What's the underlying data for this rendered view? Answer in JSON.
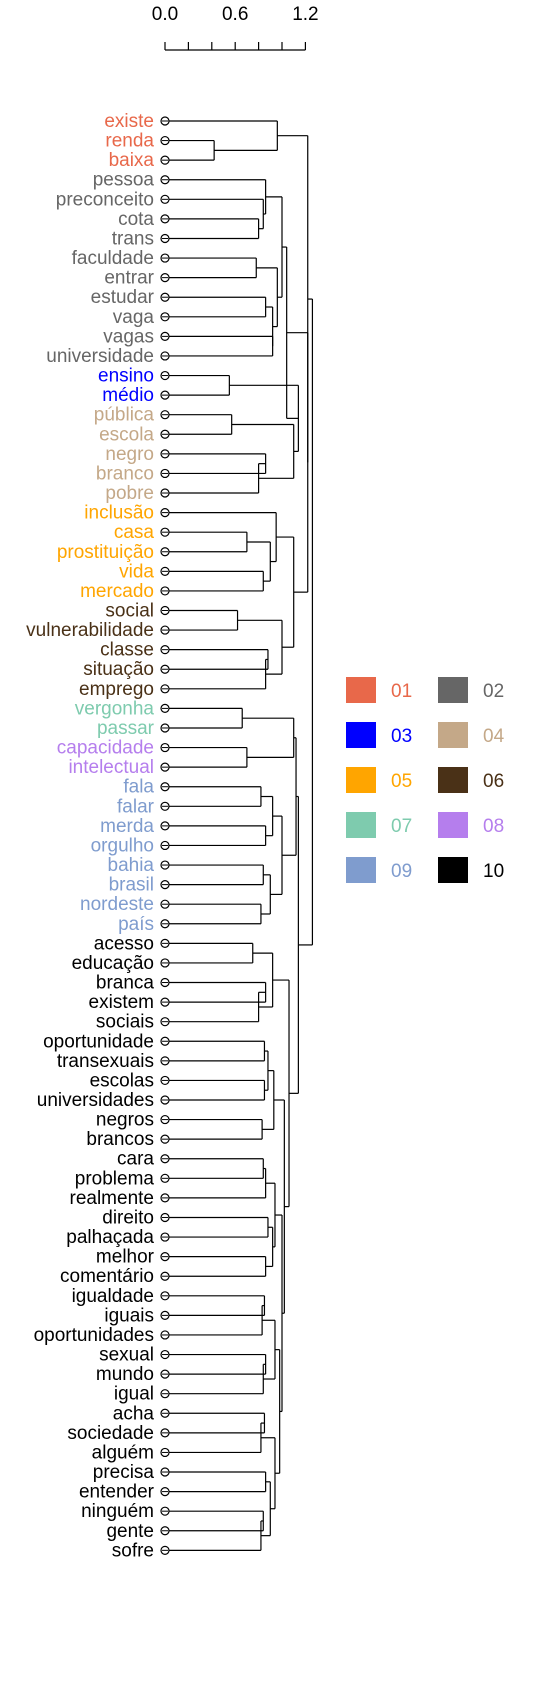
{
  "scale": {
    "ticks": [
      0,
      0.2,
      0.4,
      0.6,
      0.8,
      1.0,
      1.2
    ],
    "tick_labels": [
      {
        "value": 0.0,
        "label": "0.0"
      },
      {
        "value": 0.6,
        "label": "0.6"
      },
      {
        "value": 1.2,
        "label": "1.2"
      }
    ]
  },
  "clusters": [
    {
      "id": "01",
      "label": "01",
      "color": "#E8684A"
    },
    {
      "id": "02",
      "label": "02",
      "color": "#666666"
    },
    {
      "id": "03",
      "label": "03",
      "color": "#0000FF"
    },
    {
      "id": "04",
      "label": "04",
      "color": "#C4A888"
    },
    {
      "id": "05",
      "label": "05",
      "color": "#FFA500"
    },
    {
      "id": "06",
      "label": "06",
      "color": "#4A3117"
    },
    {
      "id": "07",
      "label": "07",
      "color": "#7ECBAE"
    },
    {
      "id": "08",
      "label": "08",
      "color": "#B57EED"
    },
    {
      "id": "09",
      "label": "09",
      "color": "#7F9CCE"
    },
    {
      "id": "10",
      "label": "10",
      "color": "#000000"
    }
  ],
  "leaves": [
    {
      "word": "existe",
      "cluster": "01"
    },
    {
      "word": "renda",
      "cluster": "01"
    },
    {
      "word": "baixa",
      "cluster": "01"
    },
    {
      "word": "pessoa",
      "cluster": "02"
    },
    {
      "word": "preconceito",
      "cluster": "02"
    },
    {
      "word": "cota",
      "cluster": "02"
    },
    {
      "word": "trans",
      "cluster": "02"
    },
    {
      "word": "faculdade",
      "cluster": "02"
    },
    {
      "word": "entrar",
      "cluster": "02"
    },
    {
      "word": "estudar",
      "cluster": "02"
    },
    {
      "word": "vaga",
      "cluster": "02"
    },
    {
      "word": "vagas",
      "cluster": "02"
    },
    {
      "word": "universidade",
      "cluster": "02"
    },
    {
      "word": "ensino",
      "cluster": "03"
    },
    {
      "word": "médio",
      "cluster": "03"
    },
    {
      "word": "pública",
      "cluster": "04"
    },
    {
      "word": "escola",
      "cluster": "04"
    },
    {
      "word": "negro",
      "cluster": "04"
    },
    {
      "word": "branco",
      "cluster": "04"
    },
    {
      "word": "pobre",
      "cluster": "04"
    },
    {
      "word": "inclusão",
      "cluster": "05"
    },
    {
      "word": "casa",
      "cluster": "05"
    },
    {
      "word": "prostituição",
      "cluster": "05"
    },
    {
      "word": "vida",
      "cluster": "05"
    },
    {
      "word": "mercado",
      "cluster": "05"
    },
    {
      "word": "social",
      "cluster": "06"
    },
    {
      "word": "vulnerabilidade",
      "cluster": "06"
    },
    {
      "word": "classe",
      "cluster": "06"
    },
    {
      "word": "situação",
      "cluster": "06"
    },
    {
      "word": "emprego",
      "cluster": "06"
    },
    {
      "word": "vergonha",
      "cluster": "07"
    },
    {
      "word": "passar",
      "cluster": "07"
    },
    {
      "word": "capacidade",
      "cluster": "08"
    },
    {
      "word": "intelectual",
      "cluster": "08"
    },
    {
      "word": "fala",
      "cluster": "09"
    },
    {
      "word": "falar",
      "cluster": "09"
    },
    {
      "word": "merda",
      "cluster": "09"
    },
    {
      "word": "orgulho",
      "cluster": "09"
    },
    {
      "word": "bahia",
      "cluster": "09"
    },
    {
      "word": "brasil",
      "cluster": "09"
    },
    {
      "word": "nordeste",
      "cluster": "09"
    },
    {
      "word": "país",
      "cluster": "09"
    },
    {
      "word": "acesso",
      "cluster": "10"
    },
    {
      "word": "educação",
      "cluster": "10"
    },
    {
      "word": "branca",
      "cluster": "10"
    },
    {
      "word": "existem",
      "cluster": "10"
    },
    {
      "word": "sociais",
      "cluster": "10"
    },
    {
      "word": "oportunidade",
      "cluster": "10"
    },
    {
      "word": "transexuais",
      "cluster": "10"
    },
    {
      "word": "escolas",
      "cluster": "10"
    },
    {
      "word": "universidades",
      "cluster": "10"
    },
    {
      "word": "negros",
      "cluster": "10"
    },
    {
      "word": "brancos",
      "cluster": "10"
    },
    {
      "word": "cara",
      "cluster": "10"
    },
    {
      "word": "problema",
      "cluster": "10"
    },
    {
      "word": "realmente",
      "cluster": "10"
    },
    {
      "word": "direito",
      "cluster": "10"
    },
    {
      "word": "palhaçada",
      "cluster": "10"
    },
    {
      "word": "melhor",
      "cluster": "10"
    },
    {
      "word": "comentário",
      "cluster": "10"
    },
    {
      "word": "igualdade",
      "cluster": "10"
    },
    {
      "word": "iguais",
      "cluster": "10"
    },
    {
      "word": "oportunidades",
      "cluster": "10"
    },
    {
      "word": "sexual",
      "cluster": "10"
    },
    {
      "word": "mundo",
      "cluster": "10"
    },
    {
      "word": "igual",
      "cluster": "10"
    },
    {
      "word": "acha",
      "cluster": "10"
    },
    {
      "word": "sociedade",
      "cluster": "10"
    },
    {
      "word": "alguém",
      "cluster": "10"
    },
    {
      "word": "precisa",
      "cluster": "10"
    },
    {
      "word": "entender",
      "cluster": "10"
    },
    {
      "word": "ninguém",
      "cluster": "10"
    },
    {
      "word": "gente",
      "cluster": "10"
    },
    {
      "word": "sofre",
      "cluster": "10"
    }
  ],
  "merges": [
    [
      1,
      2,
      0.42
    ],
    [
      0,
      "m0",
      0.96
    ],
    [
      5,
      6,
      0.8
    ],
    [
      4,
      "m2",
      0.84
    ],
    [
      3,
      "m3",
      0.86
    ],
    [
      7,
      8,
      0.78
    ],
    [
      9,
      10,
      0.86
    ],
    [
      11,
      12,
      0.92
    ],
    [
      "m6",
      "m7",
      0.92
    ],
    [
      "m5",
      "m8",
      0.96
    ],
    [
      "m4",
      "m9",
      1.0
    ],
    [
      13,
      14,
      0.55
    ],
    [
      15,
      16,
      0.57
    ],
    [
      17,
      18,
      0.86
    ],
    [
      "m13",
      19,
      0.8
    ],
    [
      "m12",
      "m14",
      1.1
    ],
    [
      "m11",
      "m15",
      1.14
    ],
    [
      "m10",
      "m16",
      1.04
    ],
    [
      21,
      22,
      0.7
    ],
    [
      23,
      24,
      0.84
    ],
    [
      "m18",
      "m19",
      0.9
    ],
    [
      20,
      "m20",
      0.95
    ],
    [
      25,
      26,
      0.62
    ],
    [
      27,
      28,
      0.88
    ],
    [
      29,
      "m23",
      0.86
    ],
    [
      "m22",
      "m24",
      1.0
    ],
    [
      "m21",
      "m25",
      1.1
    ],
    [
      "m17",
      "m26",
      1.22
    ],
    [
      "m0b",
      "m27",
      1.22
    ],
    [
      30,
      31,
      0.66
    ],
    [
      32,
      33,
      0.7
    ],
    [
      "m29",
      "m30",
      1.1
    ],
    [
      34,
      35,
      0.82
    ],
    [
      36,
      37,
      0.86
    ],
    [
      "m32",
      "m33",
      0.92
    ],
    [
      38,
      39,
      0.84
    ],
    [
      40,
      41,
      0.82
    ],
    [
      "m35",
      "m36",
      0.9
    ],
    [
      "m34",
      "m37",
      1.0
    ],
    [
      "m31",
      "m38",
      1.12
    ],
    [
      42,
      43,
      0.75
    ],
    [
      44,
      45,
      0.86
    ],
    [
      46,
      "m41",
      0.8
    ],
    [
      "m40",
      "m42",
      0.92
    ],
    [
      47,
      48,
      0.85
    ],
    [
      49,
      50,
      0.85
    ],
    [
      "m44",
      "m45",
      0.88
    ],
    [
      51,
      52,
      0.83
    ],
    [
      "m46",
      "m47",
      0.93
    ],
    [
      53,
      54,
      0.84
    ],
    [
      55,
      "m49",
      0.86
    ],
    [
      56,
      57,
      0.88
    ],
    [
      58,
      59,
      0.86
    ],
    [
      "m51",
      "m52",
      0.92
    ],
    [
      "m50",
      "m53",
      0.94
    ],
    [
      60,
      61,
      0.85
    ],
    [
      62,
      "m55",
      0.83
    ],
    [
      63,
      64,
      0.86
    ],
    [
      65,
      "m57",
      0.84
    ],
    [
      "m56",
      "m58",
      0.94
    ],
    [
      66,
      67,
      0.85
    ],
    [
      68,
      "m60",
      0.82
    ],
    [
      69,
      70,
      0.86
    ],
    [
      71,
      72,
      0.84
    ],
    [
      73,
      "m63",
      0.82
    ],
    [
      "m62",
      "m64",
      0.9
    ],
    [
      "m61",
      "m65",
      0.94
    ],
    [
      "m59",
      "m66",
      0.98
    ],
    [
      "m54",
      "m67",
      1.0
    ],
    [
      "m48",
      "m68",
      1.02
    ],
    [
      "m43",
      "m69",
      1.06
    ],
    [
      "m39",
      "m70",
      1.14
    ],
    [
      "m28",
      "m71",
      1.26
    ]
  ]
}
